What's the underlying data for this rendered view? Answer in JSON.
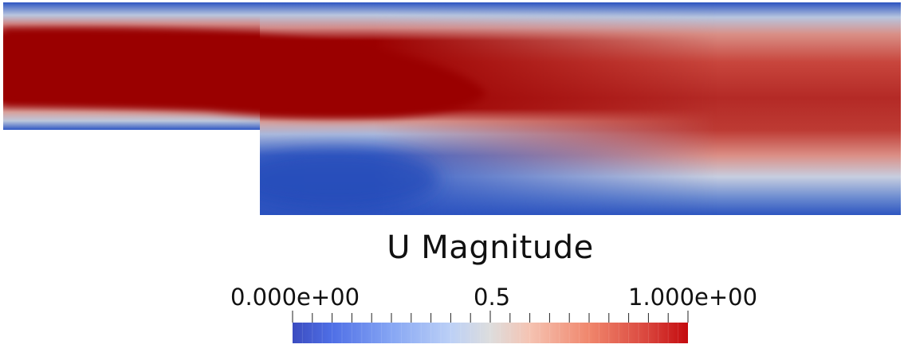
{
  "field": {
    "name": "U Magnitude",
    "colormap": "cool-to-warm",
    "colors": {
      "low": "#3b4cc0",
      "mid": "#dddddd",
      "high": "#b40426",
      "core": "#9a0000",
      "background": "#ffffff"
    }
  },
  "legend": {
    "title": "U Magnitude",
    "min_label": "0.000e+00",
    "mid_label": "0.5",
    "max_label": "1.000e+00",
    "range": [
      0,
      1
    ],
    "tick_count": 21
  }
}
